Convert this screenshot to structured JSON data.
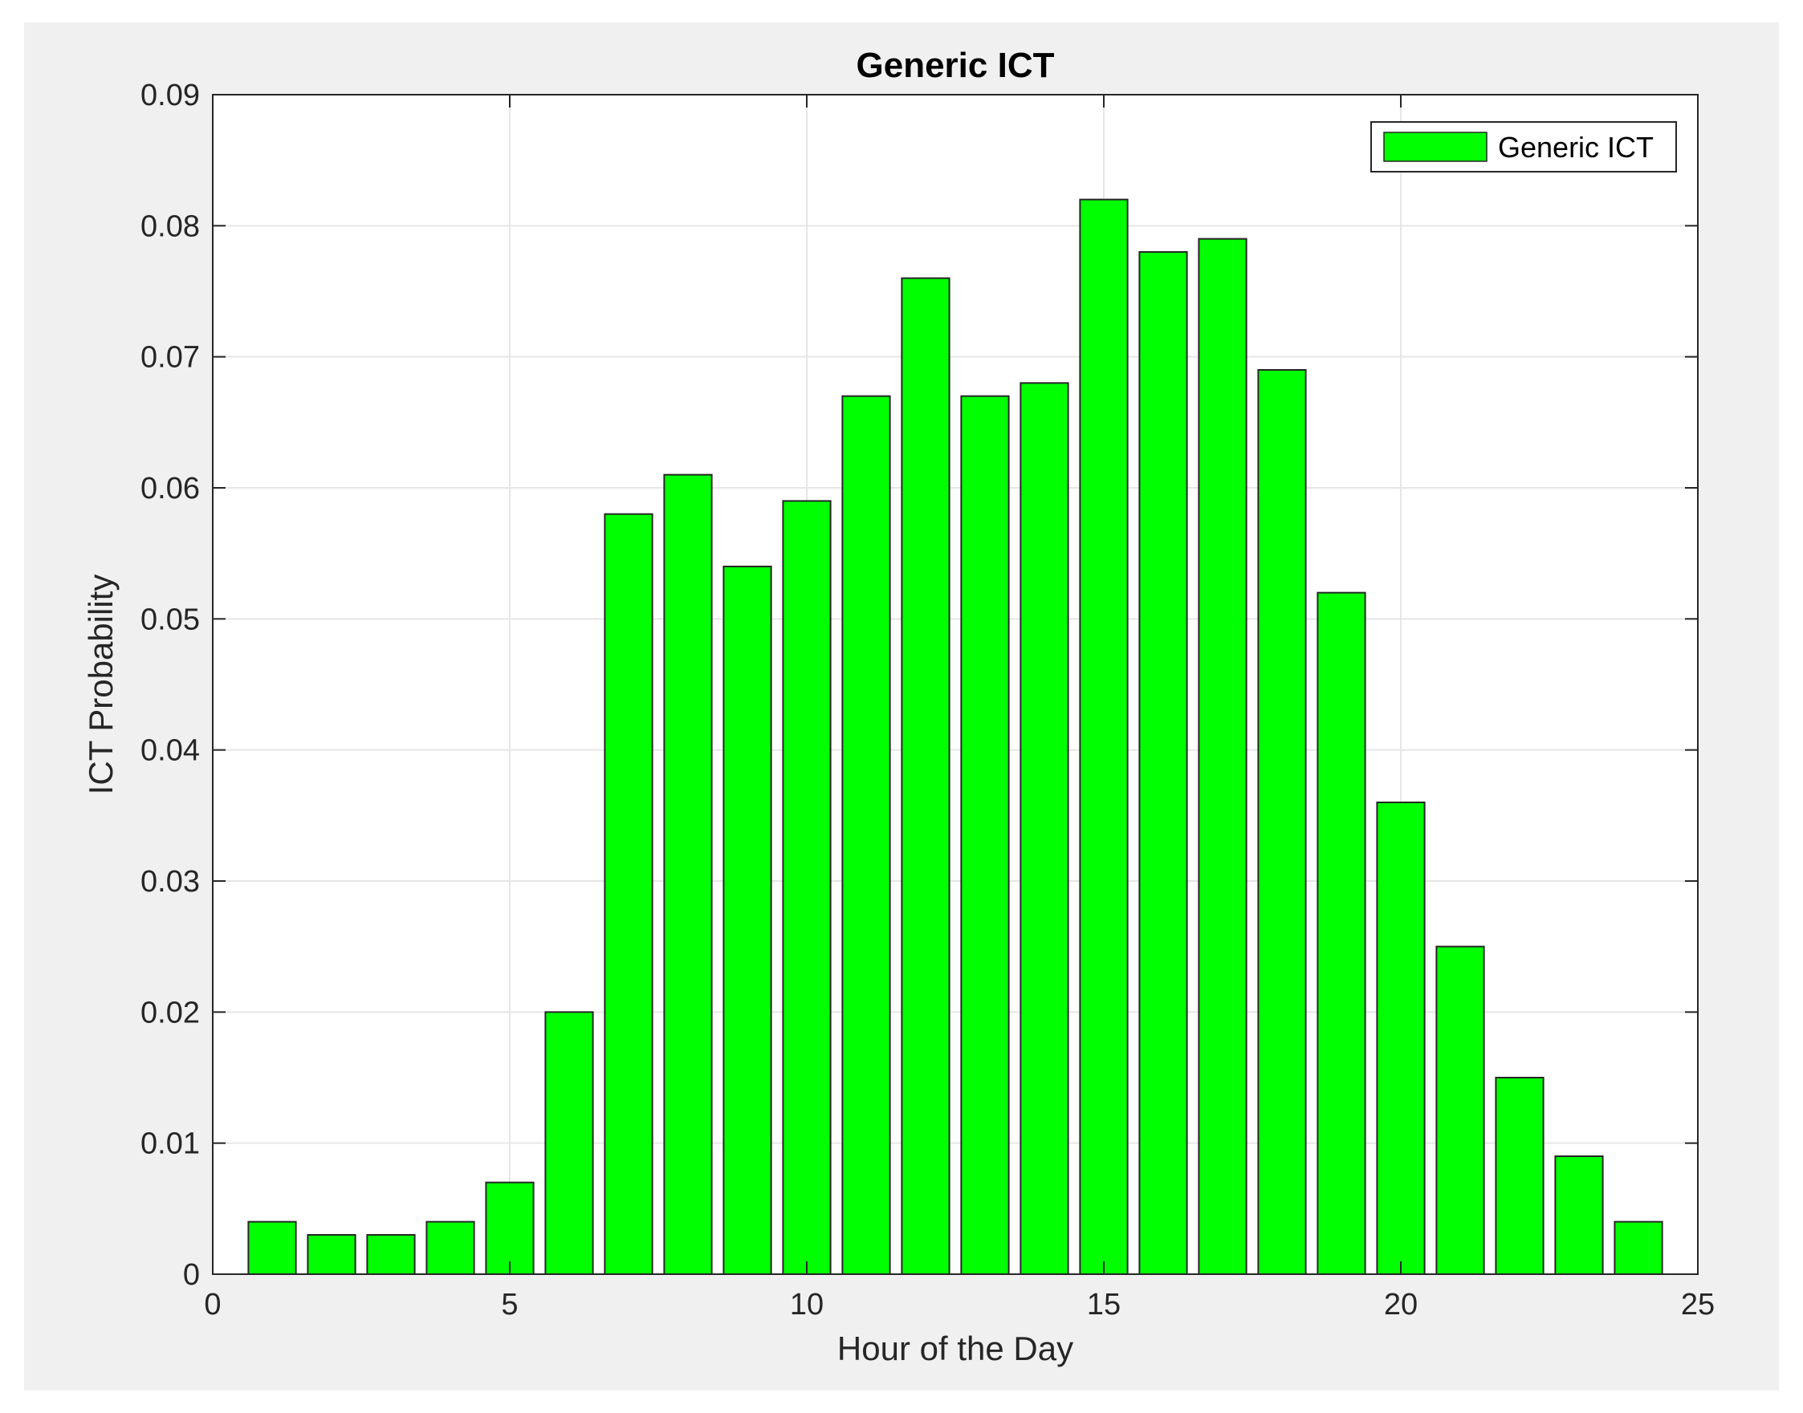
{
  "chart_data": {
    "type": "bar",
    "title": "Generic ICT",
    "xlabel": "Hour of the Day",
    "ylabel": "ICT Probability",
    "x": [
      1,
      2,
      3,
      4,
      5,
      6,
      7,
      8,
      9,
      10,
      11,
      12,
      13,
      14,
      15,
      16,
      17,
      18,
      19,
      20,
      21,
      22,
      23,
      24
    ],
    "series": [
      {
        "name": "Generic ICT",
        "color": "#00ff00",
        "values": [
          0.004,
          0.003,
          0.003,
          0.004,
          0.007,
          0.02,
          0.058,
          0.061,
          0.054,
          0.059,
          0.067,
          0.076,
          0.067,
          0.068,
          0.082,
          0.078,
          0.079,
          0.069,
          0.052,
          0.036,
          0.025,
          0.015,
          0.009,
          0.004
        ]
      }
    ],
    "xlim": [
      0,
      25
    ],
    "ylim": [
      0,
      0.09
    ],
    "xticks": [
      0,
      5,
      10,
      15,
      20,
      25
    ],
    "xtick_labels": [
      "0",
      "5",
      "10",
      "15",
      "20",
      "25"
    ],
    "yticks": [
      0,
      0.01,
      0.02,
      0.03,
      0.04,
      0.05,
      0.06,
      0.07,
      0.08,
      0.09
    ],
    "ytick_labels": [
      "0",
      "0.01",
      "0.02",
      "0.03",
      "0.04",
      "0.05",
      "0.06",
      "0.07",
      "0.08",
      "0.09"
    ],
    "grid": true,
    "legend_position": "top-right",
    "colors": {
      "figure_background": "#f0f0f0",
      "axes_background": "#ffffff",
      "bar_edge": "#262626",
      "grid": "#e6e6e6"
    }
  }
}
